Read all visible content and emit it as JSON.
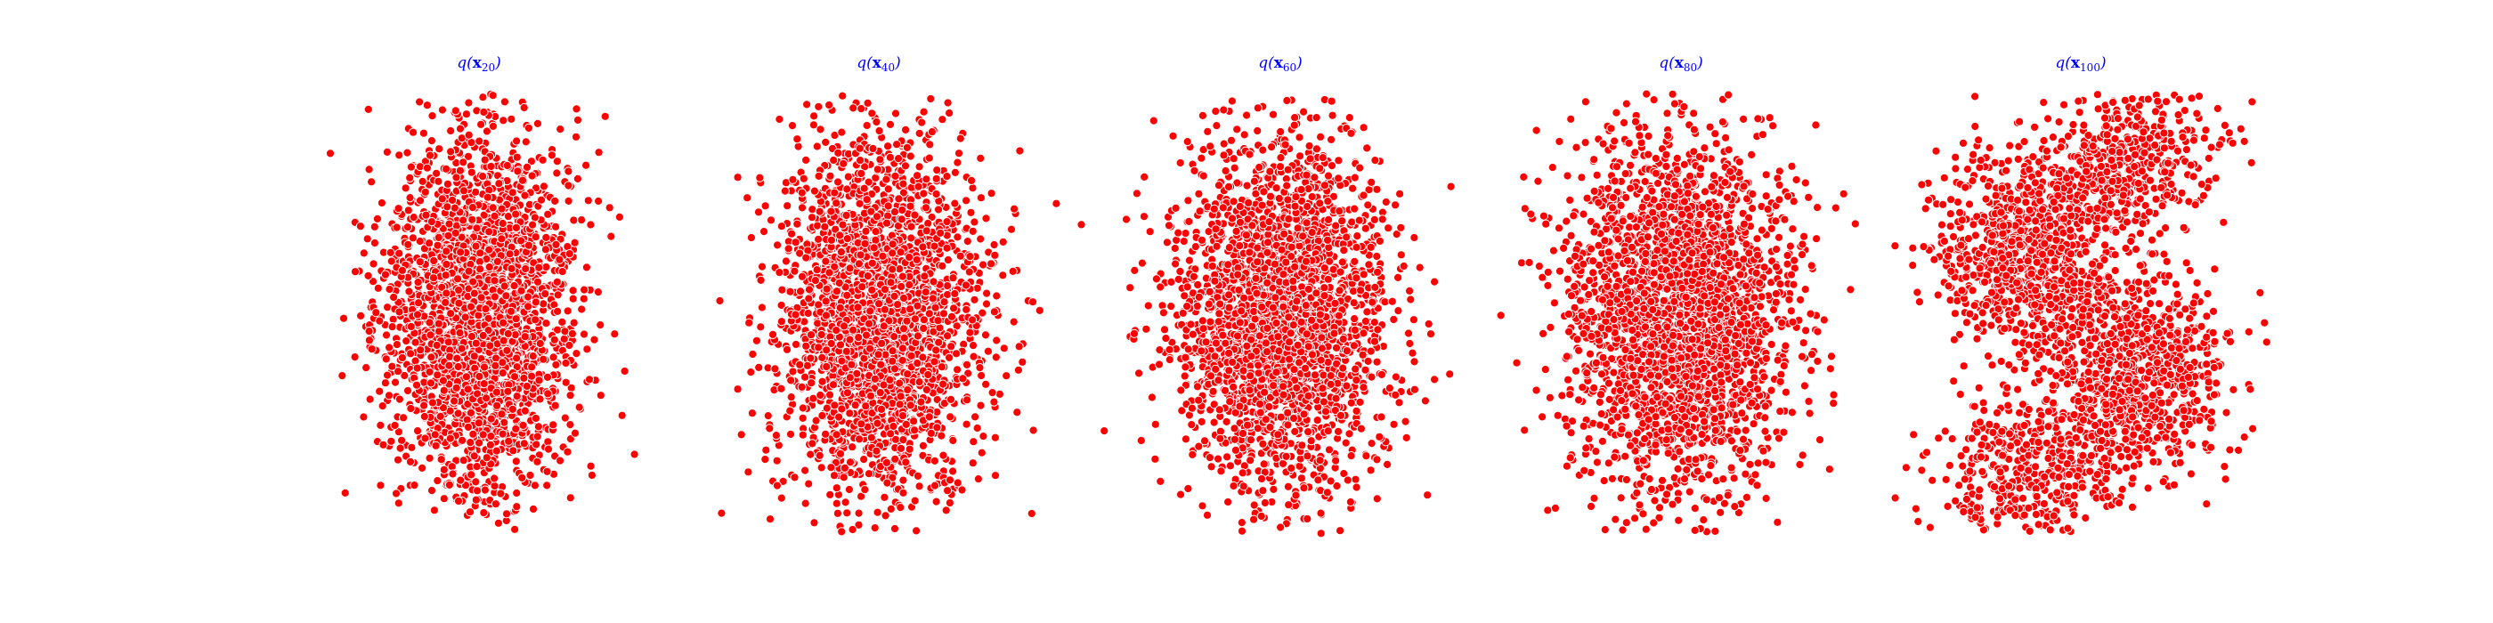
{
  "chart_data": [
    {
      "type": "scatter",
      "title_var": "q",
      "title_symbol": "x",
      "title_subscript": "20",
      "color": "#ff0000",
      "edge_color": "#ffffff",
      "shape": "blob",
      "axes": "off"
    },
    {
      "type": "scatter",
      "title_var": "q",
      "title_symbol": "x",
      "title_subscript": "40",
      "color": "#ff0000",
      "edge_color": "#ffffff",
      "shape": "blob",
      "axes": "off"
    },
    {
      "type": "scatter",
      "title_var": "q",
      "title_symbol": "x",
      "title_subscript": "60",
      "color": "#ff0000",
      "edge_color": "#ffffff",
      "shape": "blob",
      "axes": "off"
    },
    {
      "type": "scatter",
      "title_var": "q",
      "title_symbol": "x",
      "title_subscript": "80",
      "color": "#ff0000",
      "edge_color": "#ffffff",
      "shape": "blob",
      "axes": "off"
    },
    {
      "type": "scatter",
      "title_var": "q",
      "title_symbol": "x",
      "title_subscript": "100",
      "color": "#ff0000",
      "edge_color": "#ffffff",
      "shape": "s-curve",
      "axes": "off"
    }
  ]
}
